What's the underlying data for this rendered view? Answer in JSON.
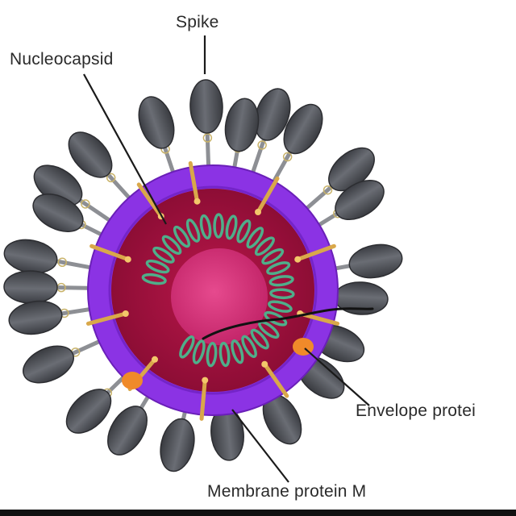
{
  "labels": {
    "spike": "Spike",
    "nucleocapsid": "Nucleocapsid",
    "envelope": "Envelope protei",
    "membrane": "Membrane protein M"
  },
  "colors": {
    "envelope_ring": "#8a2ee0",
    "interior": "#a5123e",
    "core": "#d8307a",
    "helix": "#4fae8a",
    "spike": "#4d4f55",
    "envelope_protein": "#f08a2a",
    "membrane_protein": "#d9a84a",
    "annotation_stroke": "#141414"
  }
}
